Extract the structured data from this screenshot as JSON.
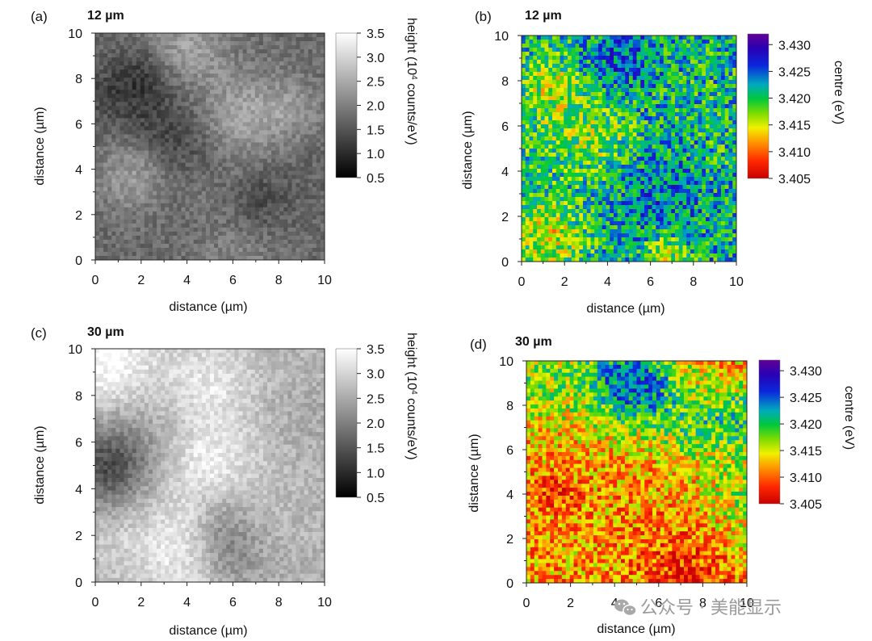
{
  "watermark": "公众号 · 美能显示",
  "chart_data": [
    {
      "type": "heatmap",
      "panel": "(a)",
      "title": "12 µm",
      "xlabel": "distance (µm)",
      "ylabel": "distance (µm)",
      "xlim": [
        0,
        10
      ],
      "ylim": [
        0,
        10
      ],
      "xticks": [
        "0",
        "2",
        "4",
        "6",
        "8",
        "10"
      ],
      "yticks": [
        "0",
        "2",
        "4",
        "6",
        "8",
        "10"
      ],
      "colormap": "gray",
      "colorbar": {
        "label_main": "height (10",
        "label_sup": "4",
        "label_end": " counts/eV)",
        "range": [
          0.5,
          3.5
        ],
        "ticks": [
          "0.5",
          "1.0",
          "1.5",
          "2.0",
          "2.5",
          "3.0",
          "3.5"
        ]
      },
      "mean_level": 0.42
    },
    {
      "type": "heatmap",
      "panel": "(b)",
      "title": "12 µm",
      "xlabel": "distance (µm)",
      "ylabel": "distance (µm)",
      "xlim": [
        0,
        10
      ],
      "ylim": [
        0,
        10
      ],
      "xticks": [
        "0",
        "2",
        "4",
        "6",
        "8",
        "10"
      ],
      "yticks": [
        "0",
        "2",
        "4",
        "6",
        "8",
        "10"
      ],
      "colormap": "spectral",
      "colorbar": {
        "label_main": "centre (eV)",
        "range": [
          3.405,
          3.432
        ],
        "ticks": [
          "3.405",
          "3.410",
          "3.415",
          "3.420",
          "3.425",
          "3.430"
        ]
      },
      "mean_level": 0.6
    },
    {
      "type": "heatmap",
      "panel": "(c)",
      "title": "30 µm",
      "xlabel": "distance (µm)",
      "ylabel": "distance (µm)",
      "xlim": [
        0,
        10
      ],
      "ylim": [
        0,
        10
      ],
      "xticks": [
        "0",
        "2",
        "4",
        "6",
        "8",
        "10"
      ],
      "yticks": [
        "0",
        "2",
        "4",
        "6",
        "8",
        "10"
      ],
      "colormap": "gray",
      "colorbar": {
        "label_main": "height (10",
        "label_sup": "4",
        "label_end": " counts/eV)",
        "range": [
          0.5,
          3.5
        ],
        "ticks": [
          "0.5",
          "1.0",
          "1.5",
          "2.0",
          "2.5",
          "3.0",
          "3.5"
        ]
      },
      "mean_level": 0.72
    },
    {
      "type": "heatmap",
      "panel": "(d)",
      "title": "30 µm",
      "xlabel": "distance (µm)",
      "ylabel": "distance (µm)",
      "xlim": [
        0,
        10
      ],
      "ylim": [
        0,
        10
      ],
      "xticks": [
        "0",
        "2",
        "4",
        "6",
        "8",
        "10"
      ],
      "yticks": [
        "0",
        "2",
        "4",
        "6",
        "8",
        "10"
      ],
      "colormap": "spectral",
      "colorbar": {
        "label_main": "centre (eV)",
        "range": [
          3.405,
          3.432
        ],
        "ticks": [
          "3.405",
          "3.410",
          "3.415",
          "3.420",
          "3.425",
          "3.430"
        ]
      },
      "mean_level": 0.25
    }
  ]
}
